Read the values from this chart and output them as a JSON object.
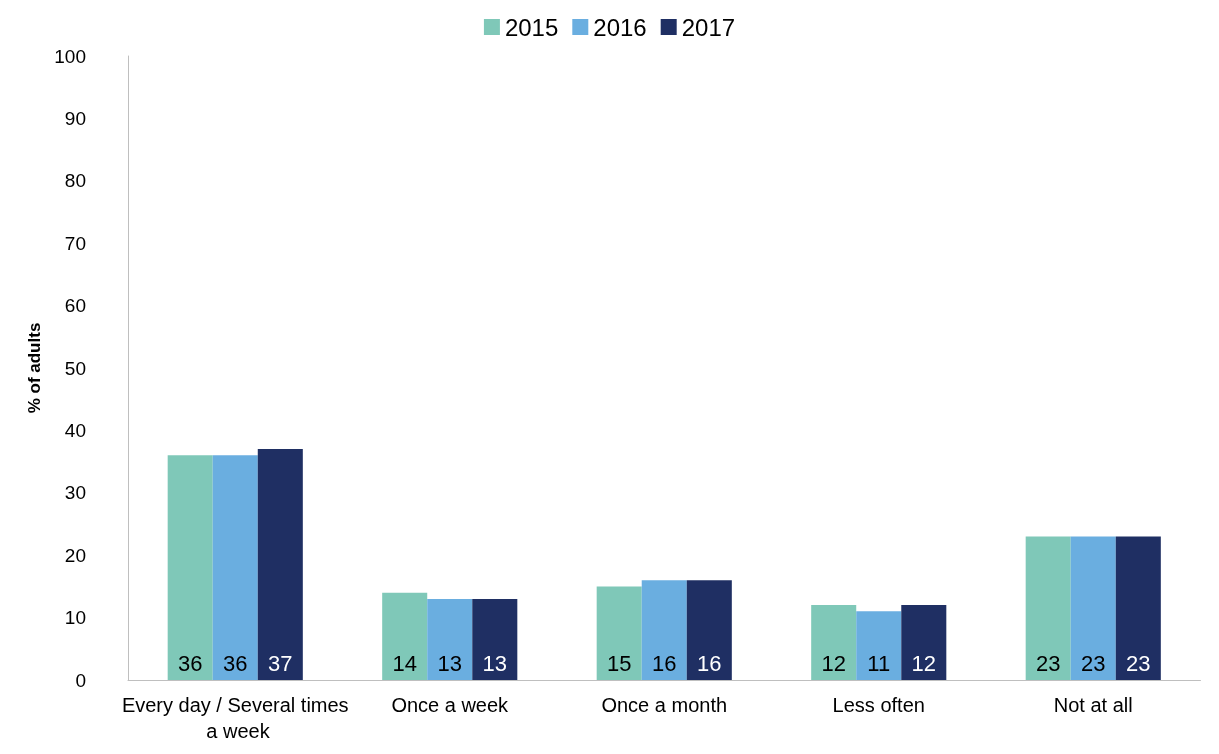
{
  "chart_data": {
    "type": "bar",
    "ylabel": "% of adults",
    "categories": [
      "Every day / Several times a week",
      "Once a week",
      "Once a month",
      "Less often",
      "Not at all"
    ],
    "series": [
      {
        "name": "2015",
        "color": "#7fc8b8",
        "values": [
          36,
          14,
          15,
          12,
          23
        ]
      },
      {
        "name": "2016",
        "color": "#6aaee0",
        "values": [
          36,
          13,
          16,
          11,
          23
        ]
      },
      {
        "name": "2017",
        "color": "#1f2f63",
        "values": [
          37,
          13,
          16,
          12,
          23
        ]
      }
    ],
    "ylim": [
      0,
      100
    ],
    "yticks": [
      0,
      10,
      20,
      30,
      40,
      50,
      60,
      70,
      80,
      90,
      100
    ],
    "grid": false,
    "legend": "top",
    "data_labels": true
  }
}
